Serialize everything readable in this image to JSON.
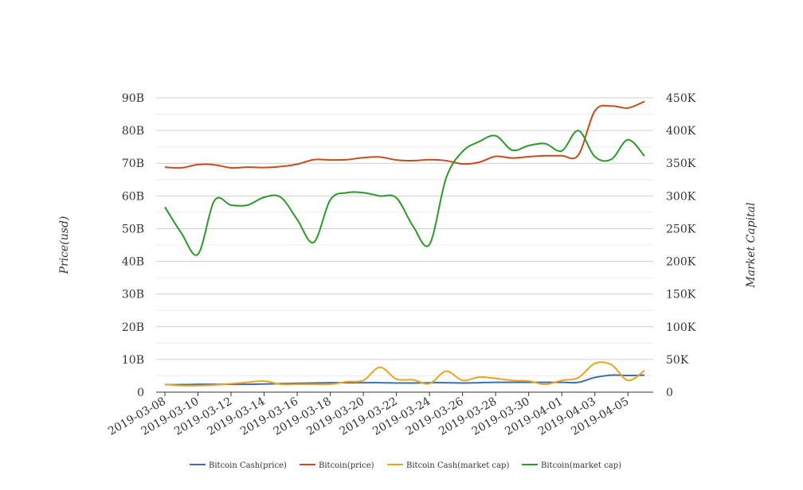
{
  "chart_data": {
    "type": "line",
    "title": "",
    "xlabel": "",
    "ylabel": "Price(usd)",
    "ylabel_right": "Market Capital",
    "grid": true,
    "legend_position": "bottom",
    "x": [
      "2019-03-08",
      "2019-03-09",
      "2019-03-10",
      "2019-03-11",
      "2019-03-12",
      "2019-03-13",
      "2019-03-14",
      "2019-03-15",
      "2019-03-16",
      "2019-03-17",
      "2019-03-18",
      "2019-03-19",
      "2019-03-20",
      "2019-03-21",
      "2019-03-22",
      "2019-03-23",
      "2019-03-24",
      "2019-03-25",
      "2019-03-26",
      "2019-03-27",
      "2019-03-28",
      "2019-03-29",
      "2019-03-30",
      "2019-03-31",
      "2019-04-01",
      "2019-04-02",
      "2019-04-03",
      "2019-04-04",
      "2019-04-05",
      "2019-04-06"
    ],
    "xticks": [
      "2019-03-08",
      "2019-03-10",
      "2019-03-12",
      "2019-03-14",
      "2019-03-16",
      "2019-03-18",
      "2019-03-20",
      "2019-03-22",
      "2019-03-24",
      "2019-03-26",
      "2019-03-28",
      "2019-03-30",
      "2019-04-01",
      "2019-04-03",
      "2019-04-05"
    ],
    "y_left": {
      "min": 0,
      "max": 90000000000,
      "ticks": [
        0,
        10000000000,
        20000000000,
        30000000000,
        40000000000,
        50000000000,
        60000000000,
        70000000000,
        80000000000,
        90000000000
      ],
      "tick_labels": [
        "0",
        "10B",
        "20B",
        "30B",
        "40B",
        "50B",
        "60B",
        "70B",
        "80B",
        "90B"
      ]
    },
    "y_right": {
      "min": 0,
      "max": 450000,
      "ticks": [
        0,
        50000,
        100000,
        150000,
        200000,
        250000,
        300000,
        350000,
        400000,
        450000
      ],
      "tick_labels": [
        "0",
        "50K",
        "100K",
        "150K",
        "200K",
        "250K",
        "300K",
        "350K",
        "400K",
        "450K"
      ]
    },
    "series": [
      {
        "name": "Bitcoin Cash(price)",
        "axis": "left",
        "color": "#3d6eb4",
        "values": [
          2.3,
          2.3,
          2.4,
          2.4,
          2.4,
          2.4,
          2.5,
          2.6,
          2.7,
          2.8,
          2.9,
          2.9,
          2.9,
          2.9,
          2.8,
          2.8,
          2.9,
          2.9,
          2.8,
          2.9,
          3.0,
          3.0,
          3.0,
          3.0,
          3.0,
          3.0,
          4.5,
          5.2,
          5.1,
          5.2
        ]
      },
      {
        "name": "Bitcoin(price)",
        "axis": "left",
        "color": "#cc4a1e",
        "values": [
          68.8,
          68.6,
          69.6,
          69.5,
          68.6,
          68.8,
          68.7,
          69.0,
          69.7,
          71.1,
          71.0,
          71.1,
          71.7,
          71.9,
          71.0,
          70.8,
          71.1,
          70.8,
          69.8,
          70.3,
          72.1,
          71.6,
          72.0,
          72.3,
          72.3,
          72.5,
          86.0,
          87.5,
          86.9,
          88.9
        ]
      },
      {
        "name": "Bitcoin Cash(market cap)",
        "axis": "right",
        "color": "#e9a61c",
        "values": [
          12000,
          10000,
          10000,
          11000,
          13000,
          15000,
          17000,
          12000,
          12000,
          12000,
          12000,
          16000,
          18000,
          38000,
          20000,
          19000,
          13000,
          32000,
          18000,
          23000,
          21000,
          18000,
          17000,
          12000,
          18000,
          22000,
          44000,
          42000,
          18000,
          33000
        ]
      },
      {
        "name": "Bitcoin(market cap)",
        "axis": "right",
        "color": "#2b9a2b",
        "values": [
          283000,
          243000,
          211000,
          293000,
          286000,
          286000,
          298000,
          298000,
          264000,
          229000,
          294000,
          305000,
          305000,
          300000,
          297000,
          254000,
          226000,
          327000,
          368000,
          383000,
          392000,
          370000,
          377000,
          380000,
          369000,
          400000,
          360000,
          356000,
          386000,
          361000
        ]
      }
    ]
  }
}
